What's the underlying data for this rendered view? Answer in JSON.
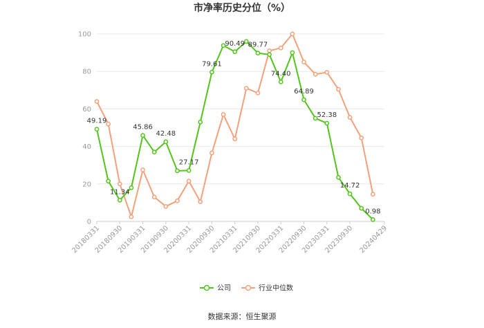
{
  "chart_data": {
    "type": "line",
    "title": "市净率历史分位（%）",
    "xlabel": "",
    "ylabel": "",
    "ylim": [
      0,
      100
    ],
    "yticks": [
      0,
      20,
      40,
      60,
      80,
      100
    ],
    "grid": true,
    "legend_position": "bottom-center",
    "x": [
      "20180331",
      "20180630",
      "20180930",
      "20181231",
      "20190331",
      "20190630",
      "20190930",
      "20191231",
      "20200331",
      "20200630",
      "20200930",
      "20201231",
      "20210331",
      "20210630",
      "20210930",
      "20211231",
      "20220331",
      "20220630",
      "20220930",
      "20221231",
      "20230331",
      "20230630",
      "20230930",
      "20231231",
      "20240331",
      "20240429"
    ],
    "x_tick_labels": [
      "20180331",
      "20180930",
      "20190331",
      "20190930",
      "20200331",
      "20200930",
      "20210331",
      "20210930",
      "20220331",
      "20220930",
      "20230331",
      "20230930",
      "20240429"
    ],
    "series": [
      {
        "name": "公司",
        "color": "#52c41a",
        "values": [
          49.19,
          21.5,
          11.34,
          18.0,
          45.86,
          37.0,
          42.48,
          27.0,
          27.17,
          53.0,
          79.61,
          93.8,
          90.49,
          96.0,
          89.77,
          89.0,
          74.4,
          90.0,
          64.89,
          55.0,
          52.38,
          23.5,
          14.72,
          7.0,
          0.98,
          null
        ],
        "labels": {
          "0": "49.19",
          "2": "11.34",
          "4": "45.86",
          "6": "42.48",
          "8": "27.17",
          "10": "79.61",
          "12": "90.49",
          "14": "89.77",
          "16": "74.40",
          "18": "64.89",
          "20": "52.38",
          "22": "14.72",
          "24": "0.98"
        }
      },
      {
        "name": "行业中位数",
        "color": "#f4a07a",
        "values": [
          64.0,
          52.0,
          20.0,
          2.5,
          27.5,
          13.0,
          8.0,
          11.0,
          21.5,
          10.5,
          36.5,
          57.0,
          44.0,
          71.0,
          68.5,
          91.0,
          92.5,
          100.0,
          85.0,
          78.5,
          79.5,
          70.5,
          55.5,
          44.5,
          14.5,
          null
        ]
      }
    ]
  },
  "source_text": "数据来源：恒生聚源"
}
